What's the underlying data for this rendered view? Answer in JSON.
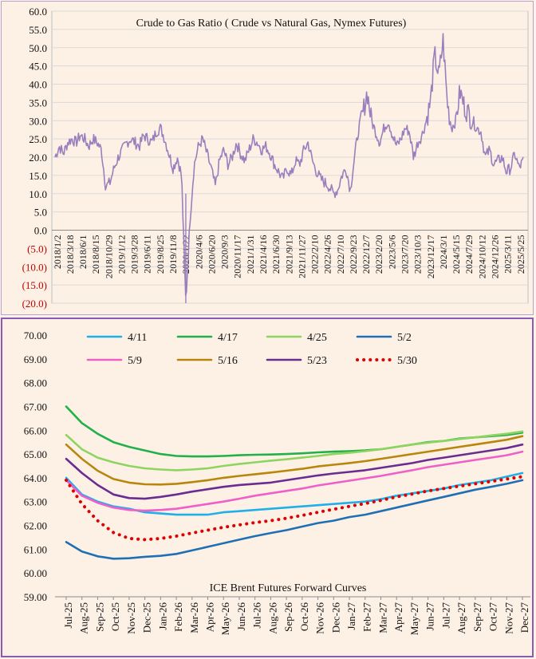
{
  "chart_data": [
    {
      "type": "line",
      "title": "Crude to Gas Ratio ( Crude vs Natural Gas, Nymex Futures)",
      "xlabel": "",
      "ylabel": "",
      "ylim": [
        -20,
        60
      ],
      "y_ticks": [
        "60.0",
        "55.0",
        "50.0",
        "45.0",
        "40.0",
        "35.0",
        "30.0",
        "25.0",
        "20.0",
        "15.0",
        "10.0",
        "5.0",
        "0.0",
        "(5.0)",
        "(10.0)",
        "(15.0)",
        "(20.0)"
      ],
      "x_ticks": [
        "2018/1/2",
        "2018/3/18",
        "2018/6/1",
        "2018/8/15",
        "2018/10/29",
        "2019/1/12",
        "2019/3/28",
        "2019/6/11",
        "2019/8/25",
        "2019/11/8",
        "2020/1/22",
        "2020/4/6",
        "2020/6/20",
        "2020/9/3",
        "2020/11/17",
        "2021/1/31",
        "2021/4/16",
        "2021/6/30",
        "2021/9/13",
        "2021/11/27",
        "2022/2/10",
        "2022/4/26",
        "2022/7/10",
        "2022/9/23",
        "2022/12/7",
        "2023/2/20",
        "2023/5/6",
        "2023/7/20",
        "2023/10/3",
        "2023/12/17",
        "2024/3/1",
        "2024/5/15",
        "2024/7/29",
        "2024/10/12",
        "2024/12/26",
        "2025/3/11",
        "2025/5/25"
      ],
      "grid": true,
      "series": [
        {
          "color": "#9b7fbd",
          "x_start": "2018/1/2",
          "x_end": "2025/5/25",
          "values": [
            20,
            23,
            21,
            24,
            25,
            24,
            26,
            25,
            23,
            25,
            24,
            22,
            12,
            13,
            17,
            20,
            22,
            24,
            25,
            24,
            23,
            26,
            25,
            24,
            27,
            28,
            25,
            21,
            17,
            20,
            15,
            -20,
            3,
            18,
            23,
            25,
            21,
            17,
            12,
            19,
            22,
            18,
            20,
            24,
            21,
            19,
            22,
            25,
            24,
            22,
            23,
            21,
            18,
            16,
            14,
            17,
            15,
            19,
            18,
            22,
            24,
            19,
            16,
            14,
            13,
            12,
            10,
            11,
            15,
            17,
            11,
            20,
            28,
            32,
            38,
            30,
            27,
            24,
            28,
            30,
            26,
            23,
            25,
            28,
            27,
            20,
            24,
            26,
            30,
            35,
            48,
            42,
            52,
            35,
            28,
            30,
            38,
            34,
            32,
            30,
            28,
            27,
            20,
            22,
            18,
            19,
            20,
            16,
            17,
            21,
            17,
            19
          ]
        }
      ]
    },
    {
      "type": "line",
      "title": "ICE Brent Futures Forward Curves",
      "xlabel": "",
      "ylabel": "",
      "ylim": [
        59,
        70
      ],
      "y_ticks": [
        "70.00",
        "69.00",
        "68.00",
        "67.00",
        "66.00",
        "65.00",
        "64.00",
        "63.00",
        "62.00",
        "61.00",
        "60.00",
        "59.00"
      ],
      "grid": false,
      "legend": "top",
      "categories": [
        "Jul-25",
        "Aug-25",
        "Sep-25",
        "Oct-25",
        "Nov-25",
        "Dec-25",
        "Jan-26",
        "Feb-26",
        "Mar-26",
        "Apr-26",
        "May-26",
        "Jun-26",
        "Jul-26",
        "Aug-26",
        "Sep-26",
        "Oct-26",
        "Nov-26",
        "Dec-26",
        "Jan-27",
        "Feb-27",
        "Mar-27",
        "Apr-27",
        "May-27",
        "Jun-27",
        "Jul-27",
        "Aug-27",
        "Sep-27",
        "Oct-27",
        "Nov-27",
        "Dec-27"
      ],
      "series": [
        {
          "name": "4/11",
          "color": "#1fb0e8",
          "dash": "",
          "values": [
            64.0,
            63.3,
            63.0,
            62.8,
            62.7,
            62.55,
            62.5,
            62.45,
            62.45,
            62.45,
            62.55,
            62.6,
            62.65,
            62.7,
            62.75,
            62.8,
            62.85,
            62.9,
            62.95,
            63.0,
            63.1,
            63.25,
            63.35,
            63.45,
            63.55,
            63.7,
            63.8,
            63.9,
            64.05,
            64.2
          ]
        },
        {
          "name": "4/17",
          "color": "#22b04a",
          "dash": "",
          "values": [
            67.0,
            66.3,
            65.85,
            65.5,
            65.3,
            65.15,
            65.0,
            64.92,
            64.9,
            64.9,
            64.92,
            64.95,
            64.97,
            64.98,
            65.0,
            65.03,
            65.07,
            65.1,
            65.12,
            65.15,
            65.2,
            65.3,
            65.4,
            65.5,
            65.55,
            65.65,
            65.7,
            65.75,
            65.8,
            65.9
          ]
        },
        {
          "name": "4/25",
          "color": "#8fd460",
          "dash": "",
          "values": [
            65.8,
            65.2,
            64.85,
            64.65,
            64.5,
            64.4,
            64.35,
            64.32,
            64.35,
            64.4,
            64.5,
            64.58,
            64.65,
            64.72,
            64.78,
            64.85,
            64.92,
            65.0,
            65.05,
            65.12,
            65.2,
            65.3,
            65.4,
            65.48,
            65.55,
            65.63,
            65.7,
            65.78,
            65.85,
            65.95
          ]
        },
        {
          "name": "5/2",
          "color": "#1f6fb5",
          "dash": "",
          "values": [
            61.3,
            60.9,
            60.7,
            60.6,
            60.62,
            60.68,
            60.72,
            60.8,
            60.95,
            61.1,
            61.25,
            61.4,
            61.55,
            61.68,
            61.8,
            61.95,
            62.1,
            62.2,
            62.35,
            62.45,
            62.6,
            62.75,
            62.9,
            63.05,
            63.2,
            63.35,
            63.5,
            63.62,
            63.75,
            63.9
          ]
        },
        {
          "name": "5/9",
          "color": "#ee5fc8",
          "dash": "",
          "values": [
            63.9,
            63.25,
            62.95,
            62.75,
            62.65,
            62.62,
            62.65,
            62.7,
            62.8,
            62.9,
            63.0,
            63.12,
            63.25,
            63.35,
            63.45,
            63.55,
            63.68,
            63.78,
            63.88,
            63.98,
            64.08,
            64.2,
            64.32,
            64.45,
            64.55,
            64.65,
            64.75,
            64.85,
            64.95,
            65.1
          ]
        },
        {
          "name": "5/16",
          "color": "#b8860b",
          "dash": "",
          "values": [
            65.4,
            64.8,
            64.3,
            63.95,
            63.8,
            63.73,
            63.72,
            63.75,
            63.82,
            63.9,
            64.0,
            64.08,
            64.15,
            64.22,
            64.3,
            64.38,
            64.48,
            64.55,
            64.62,
            64.7,
            64.8,
            64.9,
            65.0,
            65.1,
            65.2,
            65.3,
            65.4,
            65.5,
            65.6,
            65.75
          ]
        },
        {
          "name": "5/23",
          "color": "#6a2c91",
          "dash": "",
          "values": [
            64.8,
            64.2,
            63.7,
            63.3,
            63.15,
            63.12,
            63.2,
            63.3,
            63.42,
            63.52,
            63.62,
            63.7,
            63.75,
            63.8,
            63.9,
            64.0,
            64.1,
            64.18,
            64.25,
            64.32,
            64.42,
            64.52,
            64.62,
            64.75,
            64.85,
            64.95,
            65.05,
            65.15,
            65.25,
            65.4
          ]
        },
        {
          "name": "5/30",
          "color": "#e00000",
          "dash": "2,5",
          "values": [
            63.9,
            62.9,
            62.2,
            61.7,
            61.45,
            61.4,
            61.45,
            61.55,
            61.68,
            61.8,
            61.92,
            62.02,
            62.12,
            62.2,
            62.3,
            62.42,
            62.55,
            62.68,
            62.8,
            62.92,
            63.05,
            63.2,
            63.32,
            63.45,
            63.55,
            63.65,
            63.75,
            63.85,
            63.95,
            64.05
          ]
        }
      ]
    }
  ]
}
